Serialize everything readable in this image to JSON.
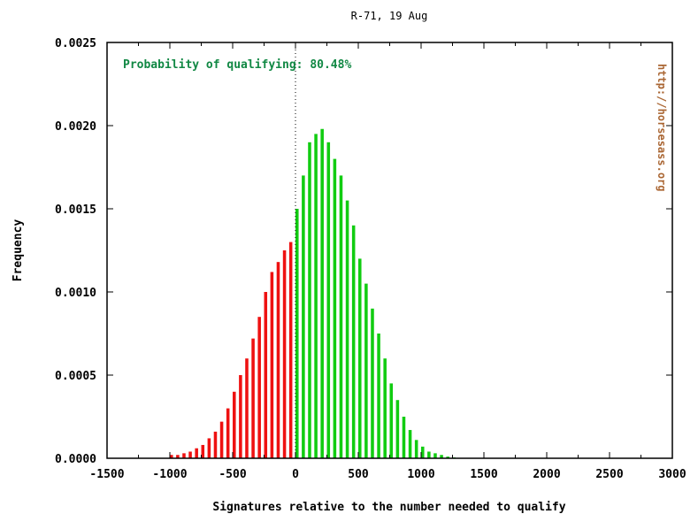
{
  "chart_data": {
    "type": "bar",
    "title": "R-71, 19 Aug",
    "xlabel": "Signatures relative to the number needed to qualify",
    "ylabel": "Frequency",
    "annotation": "Probability of qualifying: 80.48%",
    "watermark": "http://horsesass.org",
    "xlim": [
      -1500,
      3000
    ],
    "ylim": [
      0,
      0.0025
    ],
    "x_ticks": [
      -1500,
      -1000,
      -500,
      0,
      500,
      1000,
      1500,
      2000,
      2500,
      3000
    ],
    "x_tick_labels": [
      "-1500",
      "-1000",
      "-500",
      "0",
      "500",
      "1000",
      "1500",
      "2000",
      "2500",
      "3000"
    ],
    "y_ticks": [
      0,
      0.0005,
      0.001,
      0.0015,
      0.002,
      0.0025
    ],
    "y_tick_labels": [
      "0.0000",
      "0.0005",
      "0.0010",
      "0.0015",
      "0.0020",
      "0.0025"
    ],
    "grid": false,
    "zero_line": true,
    "bin_width": 25,
    "colors": {
      "not_qualifying": "#ee1111",
      "qualifying": "#11cc11",
      "annotation": "#118844",
      "watermark": "#aa6633",
      "axis": "#000000"
    },
    "series": [
      {
        "name": "",
        "x": [
          -1000,
          -950,
          -900,
          -850,
          -800,
          -750,
          -700,
          -650,
          -600,
          -550,
          -500,
          -450,
          -400,
          -350,
          -300,
          -250,
          -200,
          -150,
          -100,
          -50
        ],
        "values": [
          2e-05,
          2e-05,
          3e-05,
          4e-05,
          6e-05,
          8e-05,
          0.00012,
          0.00016,
          0.00022,
          0.0003,
          0.0004,
          0.0005,
          0.0006,
          0.00072,
          0.00085,
          0.001,
          0.00112,
          0.00118,
          0.00125,
          0.0013
        ]
      },
      {
        "name": "",
        "x": [
          0,
          50,
          100,
          150,
          200,
          250,
          300,
          350,
          400,
          450,
          500,
          550,
          600,
          650,
          700,
          750,
          800,
          850,
          900,
          950,
          1000,
          1050,
          1100,
          1150,
          1200,
          1250
        ],
        "values": [
          0.0015,
          0.0017,
          0.0019,
          0.00195,
          0.00198,
          0.0019,
          0.0018,
          0.0017,
          0.00155,
          0.0014,
          0.0012,
          0.00105,
          0.0009,
          0.00075,
          0.0006,
          0.00045,
          0.00035,
          0.00025,
          0.00017,
          0.00011,
          7e-05,
          4e-05,
          3e-05,
          2e-05,
          1e-05,
          5e-06
        ]
      }
    ]
  }
}
